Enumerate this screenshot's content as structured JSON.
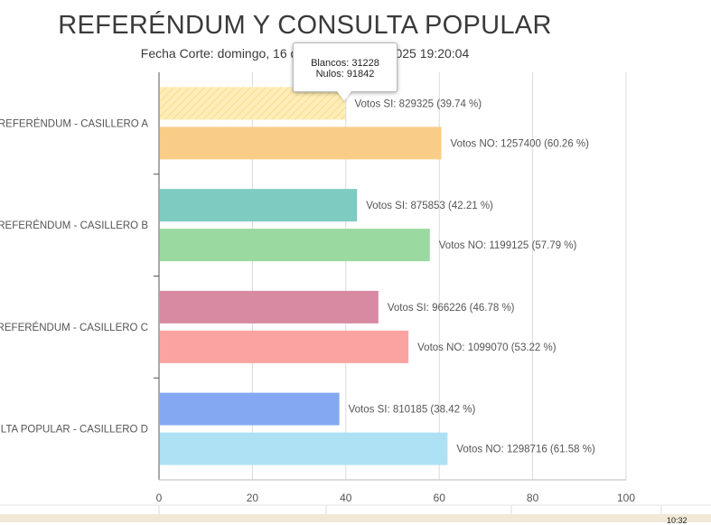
{
  "header": {
    "title": "REFERÉNDUM Y CONSULTA POPULAR",
    "subtitle": "Fecha Corte: domingo, 16 de noviembre de 2025 19:20:04"
  },
  "tooltip": {
    "line1": "Blancos: 31228",
    "line2": "Nulos: 91842"
  },
  "taskbar": {
    "clock": "10:32"
  },
  "chart_data": {
    "type": "bar",
    "orientation": "horizontal",
    "xlim": [
      0,
      100
    ],
    "xticks": [
      0,
      20,
      40,
      60,
      80,
      100
    ],
    "grid": true,
    "categories": [
      "REFERÉNDUM - CASILLERO A",
      "REFERÉNDUM - CASILLERO B",
      "REFERÉNDUM - CASILLERO C",
      "CONSULTA POPULAR - CASILLERO D"
    ],
    "groups": [
      {
        "bars": [
          {
            "value": 39.74,
            "label": "Votos SI: 829325 (39.74 %)",
            "color": "#fbe7a1",
            "hatched": true
          },
          {
            "value": 60.26,
            "label": "Votos NO: 1257400 (60.26 %)",
            "color": "#f9cd87",
            "hatched": false
          }
        ]
      },
      {
        "bars": [
          {
            "value": 42.21,
            "label": "Votos SI: 875853 (42.21 %)",
            "color": "#7ecbc1",
            "hatched": false
          },
          {
            "value": 57.79,
            "label": "Votos NO: 1199125 (57.79 %)",
            "color": "#9ad9a0",
            "hatched": false
          }
        ]
      },
      {
        "bars": [
          {
            "value": 46.78,
            "label": "Votos SI: 966226 (46.78 %)",
            "color": "#d88aa3",
            "hatched": false
          },
          {
            "value": 53.22,
            "label": "Votos NO: 1099070 (53.22 %)",
            "color": "#fba3a1",
            "hatched": false
          }
        ]
      },
      {
        "bars": [
          {
            "value": 38.42,
            "label": "Votos SI: 810185 (38.42 %)",
            "color": "#84a9f2",
            "hatched": false
          },
          {
            "value": 61.58,
            "label": "Votos NO: 1298716 (61.58 %)",
            "color": "#aee1f3",
            "hatched": false
          }
        ]
      }
    ]
  }
}
